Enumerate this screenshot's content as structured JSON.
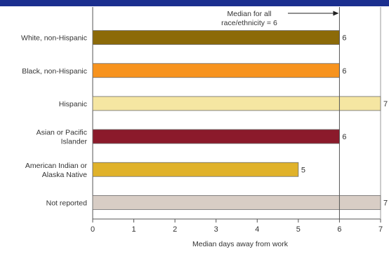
{
  "chart_data": {
    "type": "bar",
    "orientation": "horizontal",
    "categories": [
      [
        "White, non-Hispanic"
      ],
      [
        "Black, non-Hispanic"
      ],
      [
        "Hispanic"
      ],
      [
        "Asian or Pacific",
        "Islander"
      ],
      [
        "American Indian or",
        "Alaska Native"
      ],
      [
        "Not reported"
      ]
    ],
    "values": [
      6,
      6,
      7,
      6,
      5,
      7
    ],
    "bar_colors": [
      "#8c6a08",
      "#f7931e",
      "#f5e6a2",
      "#8b1a2b",
      "#e0b22a",
      "#d8cdc5"
    ],
    "xlabel": "Median days away from work",
    "xlim": [
      0,
      7
    ],
    "xticks": [
      0,
      1,
      2,
      3,
      4,
      5,
      6,
      7
    ],
    "reference_line": {
      "value": 6,
      "label_lines": [
        "Median for all",
        "race/ethnicity = 6"
      ],
      "arrow": "right"
    },
    "header_bar_color": "#1b2f8f",
    "grid": false,
    "legend": "none"
  }
}
